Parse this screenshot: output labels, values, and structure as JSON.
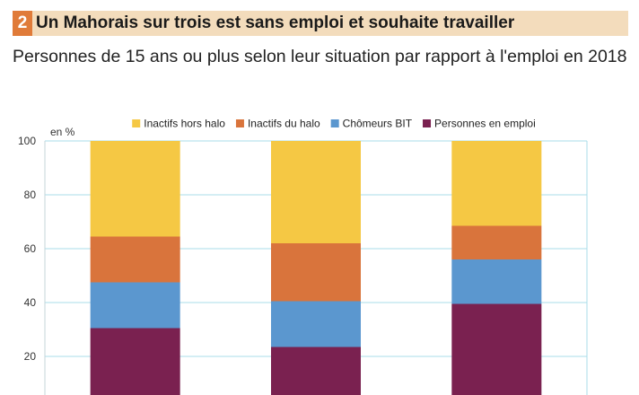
{
  "header": {
    "number": "2",
    "title": "Un Mahorais sur trois est sans emploi et souhaite travailler"
  },
  "subtitle": "Personnes de 15 ans ou plus selon leur situation par rapport à l'emploi en 2018",
  "chart_data": {
    "type": "bar",
    "stacked": true,
    "ylabel": "en %",
    "ylim": [
      0,
      100
    ],
    "yticks": [
      20,
      40,
      60,
      80,
      100
    ],
    "grid": true,
    "legend_position": "top",
    "categories": [
      "",
      "",
      ""
    ],
    "series": [
      {
        "name": "Personnes en emploi",
        "color": "#7a2150",
        "values": [
          30.5,
          23.5,
          39.5
        ]
      },
      {
        "name": "Chômeurs BIT",
        "color": "#5b97cf",
        "values": [
          17,
          17,
          16.5
        ]
      },
      {
        "name": "Inactifs du halo",
        "color": "#d9743c",
        "values": [
          17,
          21.5,
          12.5
        ]
      },
      {
        "name": "Inactifs hors halo",
        "color": "#f5c844",
        "values": [
          35.5,
          38,
          31.5
        ]
      }
    ],
    "legend_order": [
      "Inactifs hors halo",
      "Inactifs du halo",
      "Chômeurs BIT",
      "Personnes en emploi"
    ],
    "gridline_color": "#a9dcea",
    "axis_color": "#c5d5da"
  }
}
